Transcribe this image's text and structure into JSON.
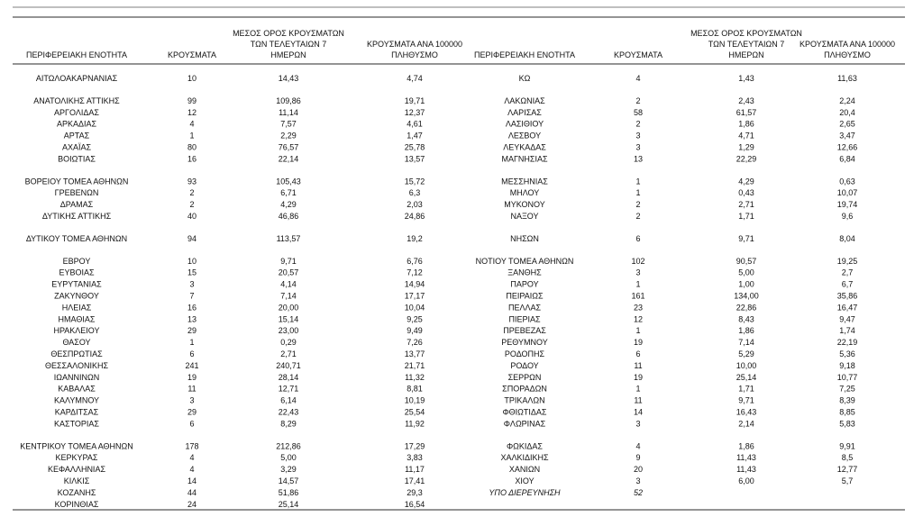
{
  "header": {
    "left": [
      [
        "ΠΕΡΙΦΕΡΕΙΑΚΗ ΕΝΟΤΗΤΑ"
      ],
      [
        "ΚΡΟΥΣΜΑΤΑ"
      ],
      [
        "ΜΕΣΟΣ ΟΡΟΣ ΚΡΟΥΣΜΑΤΩΝ",
        "ΤΩΝ ΤΕΛΕΥΤΑΙΩΝ 7",
        "ΗΜΕΡΩΝ"
      ],
      [
        "ΚΡΟΥΣΜΑΤΑ ΑΝΑ 100000",
        "ΠΛΗΘΥΣΜΟ"
      ]
    ],
    "right": [
      [
        "ΠΕΡΙΦΕΡΕΙΑΚΗ ΕΝΟΤΗΤΑ"
      ],
      [
        "ΚΡΟΥΣΜΑΤΑ"
      ],
      [
        "ΜΕΣΟΣ ΟΡΟΣ ΚΡΟΥΣΜΑΤΩΝ",
        "ΤΩΝ ΤΕΛΕΥΤΑΙΩΝ 7",
        "ΗΜΕΡΩΝ"
      ],
      [
        "ΚΡΟΥΣΜΑΤΑ ΑΝΑ 100000",
        "ΠΛΗΘΥΣΜΟ"
      ]
    ]
  },
  "groups": [
    [
      {
        "left": [
          "ΑΙΤΩΛΟΑΚΑΡΝΑΝΙΑΣ",
          "10",
          "14,43",
          "4,74"
        ],
        "right": [
          "ΚΩ",
          "4",
          "1,43",
          "11,63"
        ]
      }
    ],
    [
      {
        "left": [
          "ΑΝΑΤΟΛΙΚΗΣ ΑΤΤΙΚΗΣ",
          "99",
          "109,86",
          "19,71"
        ],
        "right": [
          "ΛΑΚΩΝΙΑΣ",
          "2",
          "2,43",
          "2,24"
        ]
      },
      {
        "left": [
          "ΑΡΓΟΛΙΔΑΣ",
          "12",
          "11,14",
          "12,37"
        ],
        "right": [
          "ΛΑΡΙΣΑΣ",
          "58",
          "61,57",
          "20,4"
        ]
      },
      {
        "left": [
          "ΑΡΚΑΔΙΑΣ",
          "4",
          "7,57",
          "4,61"
        ],
        "right": [
          "ΛΑΣΙΘΙΟΥ",
          "2",
          "1,86",
          "2,65"
        ]
      },
      {
        "left": [
          "ΑΡΤΑΣ",
          "1",
          "2,29",
          "1,47"
        ],
        "right": [
          "ΛΕΣΒΟΥ",
          "3",
          "4,71",
          "3,47"
        ]
      },
      {
        "left": [
          "ΑΧΑΪΑΣ",
          "80",
          "76,57",
          "25,78"
        ],
        "right": [
          "ΛΕΥΚΑΔΑΣ",
          "3",
          "1,29",
          "12,66"
        ]
      },
      {
        "left": [
          "ΒΟΙΩΤΙΑΣ",
          "16",
          "22,14",
          "13,57"
        ],
        "right": [
          "ΜΑΓΝΗΣΙΑΣ",
          "13",
          "22,29",
          "6,84"
        ]
      }
    ],
    [
      {
        "left": [
          "ΒΟΡΕΙΟΥ ΤΟΜΕΑ ΑΘΗΝΩΝ",
          "93",
          "105,43",
          "15,72"
        ],
        "right": [
          "ΜΕΣΣΗΝΙΑΣ",
          "1",
          "4,29",
          "0,63"
        ]
      },
      {
        "left": [
          "ΓΡΕΒΕΝΩΝ",
          "2",
          "6,71",
          "6,3"
        ],
        "right": [
          "ΜΗΛΟΥ",
          "1",
          "0,43",
          "10,07"
        ]
      },
      {
        "left": [
          "ΔΡΑΜΑΣ",
          "2",
          "4,29",
          "2,03"
        ],
        "right": [
          "ΜΥΚΟΝΟΥ",
          "2",
          "2,71",
          "19,74"
        ]
      },
      {
        "left": [
          "ΔΥΤΙΚΗΣ ΑΤΤΙΚΗΣ",
          "40",
          "46,86",
          "24,86"
        ],
        "right": [
          "ΝΑΞΟΥ",
          "2",
          "1,71",
          "9,6"
        ]
      }
    ],
    [
      {
        "left": [
          "ΔΥΤΙΚΟΥ ΤΟΜΕΑ ΑΘΗΝΩΝ",
          "94",
          "113,57",
          "19,2"
        ],
        "right": [
          "ΝΗΣΩΝ",
          "6",
          "9,71",
          "8,04"
        ]
      }
    ],
    [
      {
        "left": [
          "ΕΒΡΟΥ",
          "10",
          "9,71",
          "6,76"
        ],
        "right": [
          "ΝΟΤΙΟΥ ΤΟΜΕΑ ΑΘΗΝΩΝ",
          "102",
          "90,57",
          "19,25"
        ]
      },
      {
        "left": [
          "ΕΥΒΟΙΑΣ",
          "15",
          "20,57",
          "7,12"
        ],
        "right": [
          "ΞΑΝΘΗΣ",
          "3",
          "5,00",
          "2,7"
        ]
      },
      {
        "left": [
          "ΕΥΡΥΤΑΝΙΑΣ",
          "3",
          "4,14",
          "14,94"
        ],
        "right": [
          "ΠΑΡΟΥ",
          "1",
          "1,00",
          "6,7"
        ]
      },
      {
        "left": [
          "ΖΑΚΥΝΘΟΥ",
          "7",
          "7,14",
          "17,17"
        ],
        "right": [
          "ΠΕΙΡΑΙΩΣ",
          "161",
          "134,00",
          "35,86"
        ]
      },
      {
        "left": [
          "ΗΛΕΙΑΣ",
          "16",
          "20,00",
          "10,04"
        ],
        "right": [
          "ΠΕΛΛΑΣ",
          "23",
          "22,86",
          "16,47"
        ]
      },
      {
        "left": [
          "ΗΜΑΘΙΑΣ",
          "13",
          "15,14",
          "9,25"
        ],
        "right": [
          "ΠΙΕΡΙΑΣ",
          "12",
          "8,43",
          "9,47"
        ]
      },
      {
        "left": [
          "ΗΡΑΚΛΕΙΟΥ",
          "29",
          "23,00",
          "9,49"
        ],
        "right": [
          "ΠΡΕΒΕΖΑΣ",
          "1",
          "1,86",
          "1,74"
        ]
      },
      {
        "left": [
          "ΘΑΣΟΥ",
          "1",
          "0,29",
          "7,26"
        ],
        "right": [
          "ΡΕΘΥΜΝΟΥ",
          "19",
          "7,14",
          "22,19"
        ]
      },
      {
        "left": [
          "ΘΕΣΠΡΩΤΙΑΣ",
          "6",
          "2,71",
          "13,77"
        ],
        "right": [
          "ΡΟΔΟΠΗΣ",
          "6",
          "5,29",
          "5,36"
        ]
      },
      {
        "left": [
          "ΘΕΣΣΑΛΟΝΙΚΗΣ",
          "241",
          "240,71",
          "21,71"
        ],
        "right": [
          "ΡΟΔΟΥ",
          "11",
          "10,00",
          "9,18"
        ]
      },
      {
        "left": [
          "ΙΩΑΝΝΙΝΩΝ",
          "19",
          "28,14",
          "11,32"
        ],
        "right": [
          "ΣΕΡΡΩΝ",
          "19",
          "25,14",
          "10,77"
        ]
      },
      {
        "left": [
          "ΚΑΒΑΛΑΣ",
          "11",
          "12,71",
          "8,81"
        ],
        "right": [
          "ΣΠΟΡΑΔΩΝ",
          "1",
          "1,71",
          "7,25"
        ]
      },
      {
        "left": [
          "ΚΑΛΥΜΝΟΥ",
          "3",
          "6,14",
          "10,19"
        ],
        "right": [
          "ΤΡΙΚΑΛΩΝ",
          "11",
          "9,71",
          "8,39"
        ]
      },
      {
        "left": [
          "ΚΑΡΔΙΤΣΑΣ",
          "29",
          "22,43",
          "25,54"
        ],
        "right": [
          "ΦΘΙΩΤΙΔΑΣ",
          "14",
          "16,43",
          "8,85"
        ]
      },
      {
        "left": [
          "ΚΑΣΤΟΡΙΑΣ",
          "6",
          "8,29",
          "11,92"
        ],
        "right": [
          "ΦΛΩΡΙΝΑΣ",
          "3",
          "2,14",
          "5,83"
        ]
      }
    ],
    [
      {
        "left": [
          "ΚΕΝΤΡΙΚΟΥ ΤΟΜΕΑ ΑΘΗΝΩΝ",
          "178",
          "212,86",
          "17,29"
        ],
        "right": [
          "ΦΩΚΙΔΑΣ",
          "4",
          "1,86",
          "9,91"
        ]
      },
      {
        "left": [
          "ΚΕΡΚΥΡΑΣ",
          "4",
          "5,00",
          "3,83"
        ],
        "right": [
          "ΧΑΛΚΙΔΙΚΗΣ",
          "9",
          "11,43",
          "8,5"
        ]
      },
      {
        "left": [
          "ΚΕΦΑΛΛΗΝΙΑΣ",
          "4",
          "3,29",
          "11,17"
        ],
        "right": [
          "ΧΑΝΙΩΝ",
          "20",
          "11,43",
          "12,77"
        ]
      },
      {
        "left": [
          "ΚΙΛΚΙΣ",
          "14",
          "14,57",
          "17,41"
        ],
        "right": [
          "ΧΙΟΥ",
          "3",
          "6,00",
          "5,7"
        ]
      },
      {
        "left": [
          "ΚΟΖΑΝΗΣ",
          "44",
          "51,86",
          "29,3"
        ],
        "right": [
          "ΥΠΟ ΔΙΕΡΕΥΝΗΣΗ",
          "52"
        ]
      },
      {
        "left": [
          "ΚΟΡΙΝΘΙΑΣ",
          "24",
          "25,14",
          "16,54"
        ],
        "right": []
      }
    ]
  ]
}
